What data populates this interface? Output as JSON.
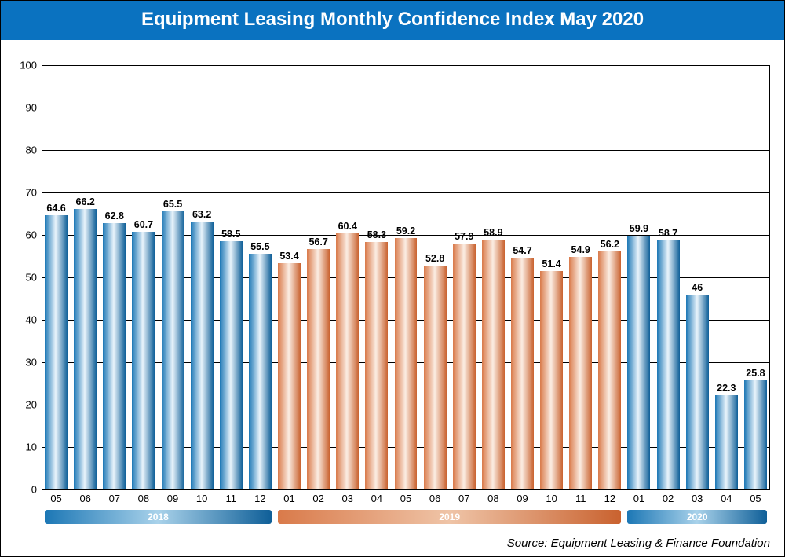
{
  "title": "Equipment Leasing Monthly Confidence Index May 2020",
  "title_fontsize": 24,
  "title_bg": "#0a72c0",
  "title_color": "#ffffff",
  "background_color": "#ffffff",
  "source": "Source: Equipment Leasing & Finance Foundation",
  "chart": {
    "type": "bar",
    "ylim": [
      0,
      100
    ],
    "ytick_step": 10,
    "yticks": [
      0,
      10,
      20,
      30,
      40,
      50,
      60,
      70,
      80,
      90,
      100
    ],
    "gridline_color": "#000000",
    "gridline_width": 0.6,
    "axis_color": "#000000",
    "label_fontsize": 13,
    "value_label_fontsize": 12.5,
    "bar_width_ratio": 0.78,
    "gradients": {
      "blue": {
        "left": "#1c77b5",
        "mid": "#e9f4fb",
        "right": "#0f5f98"
      },
      "orange": {
        "left": "#d97a4a",
        "mid": "#fbede3",
        "right": "#c9622f"
      }
    },
    "groups": [
      {
        "year": "2018",
        "color_key": "blue",
        "bar_color_left": "#1c77b5",
        "bar_color_mid": "#e9f4fb",
        "bar_color_right": "#0f5f98",
        "year_bar_gradient": {
          "left": "#1c77b5",
          "mid": "#a9d2ea",
          "right": "#0f5f98"
        },
        "months": [
          "05",
          "06",
          "07",
          "08",
          "09",
          "10",
          "11",
          "12"
        ],
        "values": [
          64.6,
          66.2,
          62.8,
          60.7,
          65.5,
          63.2,
          58.5,
          55.5
        ]
      },
      {
        "year": "2019",
        "color_key": "orange",
        "bar_color_left": "#d97a4a",
        "bar_color_mid": "#fbede3",
        "bar_color_right": "#c9622f",
        "year_bar_gradient": {
          "left": "#d97a4a",
          "mid": "#efc4a7",
          "right": "#c9622f"
        },
        "months": [
          "01",
          "02",
          "03",
          "04",
          "05",
          "06",
          "07",
          "08",
          "09",
          "10",
          "11",
          "12"
        ],
        "values": [
          53.4,
          56.7,
          60.4,
          58.3,
          59.2,
          52.8,
          57.9,
          58.9,
          54.7,
          51.4,
          54.9,
          56.2
        ]
      },
      {
        "year": "2020",
        "color_key": "blue",
        "bar_color_left": "#1c77b5",
        "bar_color_mid": "#e9f4fb",
        "bar_color_right": "#0f5f98",
        "year_bar_gradient": {
          "left": "#1c77b5",
          "mid": "#a9d2ea",
          "right": "#0f5f98"
        },
        "months": [
          "01",
          "02",
          "03",
          "04",
          "05"
        ],
        "values": [
          59.9,
          58.7,
          46,
          22.3,
          25.8
        ]
      }
    ]
  }
}
